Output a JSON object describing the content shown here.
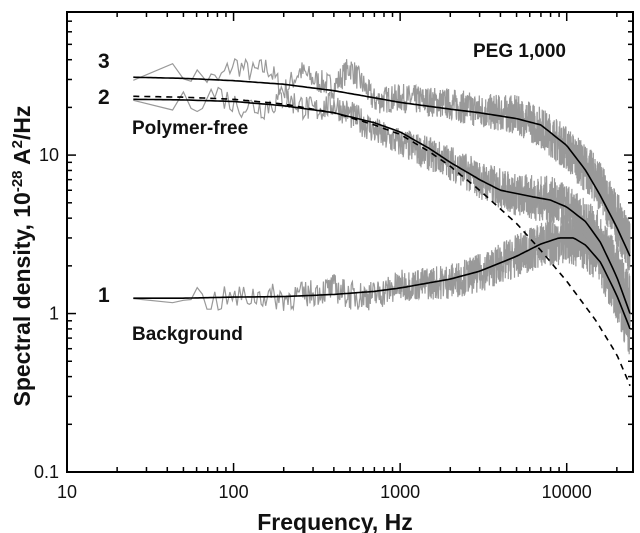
{
  "chart_data": {
    "type": "line",
    "xlabel": "Frequency, Hz",
    "ylabel": "Spectral density, 10^-28 A^2/Hz",
    "ylabel_parts": {
      "pre": "Spectral density, 10",
      "sup1": "-28",
      "mid": " A",
      "sup2": "2",
      "post": "/Hz"
    },
    "x_scale": "log",
    "y_scale": "log",
    "xlim": [
      10,
      25000
    ],
    "ylim": [
      0.1,
      80
    ],
    "x_ticks": [
      10,
      100,
      1000,
      10000
    ],
    "x_tick_labels": [
      "10",
      "100",
      "1000",
      "10000"
    ],
    "y_ticks": [
      0.1,
      1,
      10
    ],
    "y_tick_labels": [
      "0.1",
      "1",
      "10"
    ],
    "grid": false,
    "annotations": {
      "peg": "PEG 1,000",
      "polymer_free": "Polymer-free",
      "background": "Background",
      "curve_1": "1",
      "curve_2": "2",
      "curve_3": "3"
    },
    "series": [
      {
        "id": "fit_3",
        "style": "solid",
        "color": "#000000",
        "points": [
          [
            25,
            31
          ],
          [
            50,
            30.5
          ],
          [
            100,
            29.5
          ],
          [
            200,
            28
          ],
          [
            400,
            25.5
          ],
          [
            700,
            23
          ],
          [
            1000,
            21.5
          ],
          [
            2000,
            19.5
          ],
          [
            3000,
            18.5
          ],
          [
            5000,
            17
          ],
          [
            7000,
            15.5
          ],
          [
            10000,
            11.5
          ],
          [
            13000,
            8
          ],
          [
            16000,
            5.5
          ],
          [
            20000,
            3.5
          ],
          [
            24000,
            2.3
          ]
        ]
      },
      {
        "id": "fit_2",
        "style": "solid",
        "color": "#000000",
        "points": [
          [
            25,
            22.5
          ],
          [
            50,
            22.3
          ],
          [
            100,
            21.8
          ],
          [
            200,
            20.5
          ],
          [
            400,
            18.5
          ],
          [
            700,
            16
          ],
          [
            1000,
            14
          ],
          [
            1500,
            11
          ],
          [
            2000,
            9
          ],
          [
            3000,
            7
          ],
          [
            4000,
            6
          ],
          [
            6000,
            5.5
          ],
          [
            8000,
            5.2
          ],
          [
            10000,
            4.7
          ],
          [
            13000,
            3.8
          ],
          [
            16000,
            2.8
          ],
          [
            20000,
            1.7
          ],
          [
            24000,
            1.0
          ]
        ]
      },
      {
        "id": "polymer_free_fit",
        "style": "dashed",
        "color": "#000000",
        "points": [
          [
            25,
            23.5
          ],
          [
            50,
            23.2
          ],
          [
            100,
            22.5
          ],
          [
            200,
            21
          ],
          [
            400,
            18.5
          ],
          [
            700,
            15.5
          ],
          [
            1000,
            13.5
          ],
          [
            1500,
            10.5
          ],
          [
            2000,
            8.5
          ],
          [
            3000,
            6
          ],
          [
            5000,
            3.7
          ],
          [
            7000,
            2.5
          ],
          [
            10000,
            1.6
          ],
          [
            15000,
            0.9
          ],
          [
            20000,
            0.55
          ],
          [
            24000,
            0.35
          ]
        ]
      },
      {
        "id": "fit_1",
        "style": "solid",
        "color": "#000000",
        "points": [
          [
            25,
            1.25
          ],
          [
            50,
            1.25
          ],
          [
            100,
            1.27
          ],
          [
            200,
            1.28
          ],
          [
            400,
            1.32
          ],
          [
            700,
            1.38
          ],
          [
            1000,
            1.45
          ],
          [
            2000,
            1.65
          ],
          [
            3000,
            1.85
          ],
          [
            5000,
            2.3
          ],
          [
            7000,
            2.75
          ],
          [
            9000,
            3.0
          ],
          [
            11000,
            3.0
          ],
          [
            13000,
            2.7
          ],
          [
            16000,
            2.1
          ],
          [
            20000,
            1.3
          ],
          [
            24000,
            0.8
          ]
        ]
      },
      {
        "id": "data_3",
        "style": "noisy",
        "color": "#999999",
        "amplitude": 0.18,
        "points": [
          [
            25,
            35
          ],
          [
            40,
            33
          ],
          [
            60,
            32
          ],
          [
            80,
            29
          ],
          [
            100,
            38
          ],
          [
            130,
            33
          ],
          [
            160,
            36
          ],
          [
            200,
            25
          ],
          [
            250,
            34
          ],
          [
            300,
            30
          ],
          [
            400,
            27
          ],
          [
            500,
            36
          ],
          [
            700,
            22
          ],
          [
            1000,
            23
          ],
          [
            2000,
            21
          ],
          [
            3000,
            19
          ],
          [
            5000,
            18
          ],
          [
            7000,
            15
          ],
          [
            10000,
            11
          ],
          [
            15000,
            7
          ],
          [
            20000,
            4
          ],
          [
            24000,
            2.5
          ]
        ]
      },
      {
        "id": "data_2",
        "style": "noisy",
        "color": "#999999",
        "amplitude": 0.2,
        "points": [
          [
            25,
            21
          ],
          [
            50,
            21
          ],
          [
            80,
            25
          ],
          [
            100,
            21
          ],
          [
            150,
            20
          ],
          [
            200,
            23
          ],
          [
            300,
            19
          ],
          [
            400,
            21
          ],
          [
            600,
            16
          ],
          [
            800,
            13
          ],
          [
            1000,
            12
          ],
          [
            2000,
            9
          ],
          [
            3000,
            7
          ],
          [
            5000,
            5.6
          ],
          [
            8000,
            5.2
          ],
          [
            10000,
            4.5
          ],
          [
            15000,
            3.1
          ],
          [
            20000,
            1.8
          ],
          [
            24000,
            1.1
          ]
        ]
      },
      {
        "id": "data_1",
        "style": "noisy",
        "color": "#999999",
        "amplitude": 0.2,
        "points": [
          [
            25,
            1.3
          ],
          [
            50,
            1.4
          ],
          [
            70,
            1.2
          ],
          [
            100,
            1.25
          ],
          [
            150,
            1.3
          ],
          [
            200,
            1.25
          ],
          [
            300,
            1.35
          ],
          [
            400,
            1.45
          ],
          [
            500,
            1.3
          ],
          [
            700,
            1.3
          ],
          [
            1000,
            1.5
          ],
          [
            2000,
            1.6
          ],
          [
            3000,
            1.8
          ],
          [
            5000,
            2.3
          ],
          [
            7000,
            2.7
          ],
          [
            10000,
            3.0
          ],
          [
            13000,
            2.8
          ],
          [
            16000,
            2.2
          ],
          [
            20000,
            1.4
          ],
          [
            24000,
            0.8
          ]
        ]
      }
    ]
  }
}
